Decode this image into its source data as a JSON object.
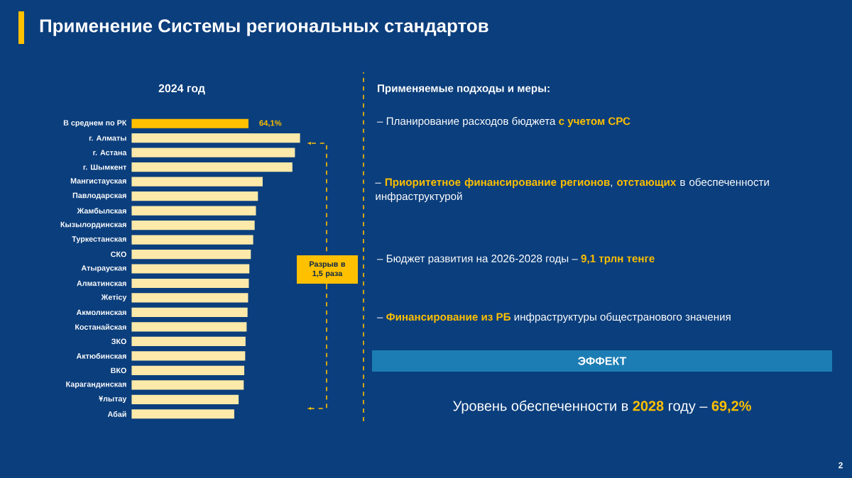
{
  "chart_data": {
    "type": "bar",
    "orientation": "horizontal",
    "tick_labels": "y",
    "title": "Применение Системы региональных стандартов",
    "subtitle": "2024 год",
    "categories": [
      "В среднем по РК",
      "г. Алматы",
      "г. Астана",
      "г. Шымкент",
      "Мангистауская",
      "Павлодарская",
      "Жамбылская",
      "Кызылординская",
      "Туркестанская",
      "СКО",
      "Атырауская",
      "Алматинская",
      "Жетісу",
      "Акмолинская",
      "Костанайская",
      "ЗКО",
      "Актюбинская",
      "ВКО",
      "Карагандинская",
      "Ұлытау",
      "Абай"
    ],
    "values": [
      64.1,
      92.4,
      89.6,
      88.2,
      71.9,
      69.3,
      68.2,
      67.5,
      66.7,
      65.4,
      64.6,
      64.3,
      63.9,
      63.6,
      63.1,
      62.5,
      62.3,
      61.8,
      61.5,
      58.7,
      56.3
    ],
    "colors": [
      "#ffc000",
      "#fde9a9",
      "#fde9a9",
      "#fde9a9",
      "#fde9a9",
      "#fde9a9",
      "#fde9a9",
      "#fde9a9",
      "#fde9a9",
      "#fde9a9",
      "#fde9a9",
      "#fde9a9",
      "#fde9a9",
      "#fde9a9",
      "#fde9a9",
      "#fde9a9",
      "#fde9a9",
      "#fde9a9",
      "#fde9a9",
      "#fde9a9",
      "#fde9a9"
    ],
    "value_labels": [
      "64,1%",
      null,
      null,
      null,
      null,
      null,
      null,
      null,
      null,
      null,
      null,
      null,
      null,
      null,
      null,
      null,
      null,
      null,
      null,
      null,
      null
    ],
    "annotations": [
      "**Применяемые подходы и меры:**",
      "– Планирование расходов бюджета **с учетом СРС**",
      "– **Приоритетное финансирование регионов**, **отстающих** в обеспеченности инфраструктурой",
      "– Бюджет развития на 2026-2028 годы – **9,1 трлн тенге**",
      "– **Финансирование из РБ** инфраструктуры общестранового значения",
      "ЭФФЕКТ",
      "Уровень обеспеченности в **2028** году – **69,2%**",
      "Разрыв в 1,5 раза",
      "2"
    ]
  }
}
